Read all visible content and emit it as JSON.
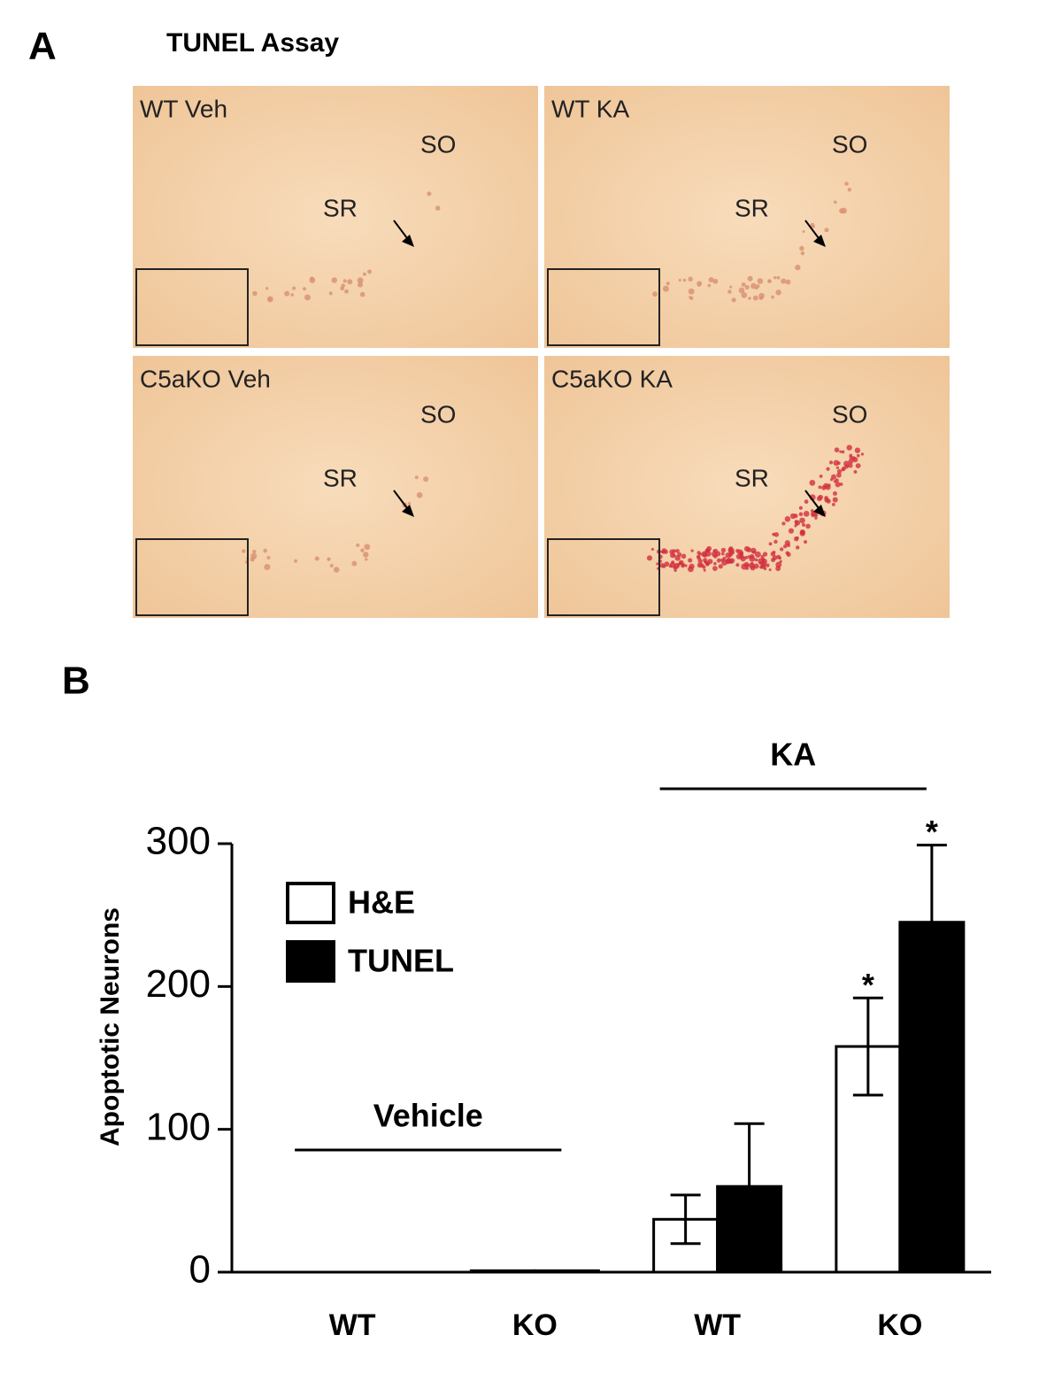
{
  "panel_a": {
    "label": "A",
    "title": "TUNEL Assay",
    "images": [
      {
        "label": "WT Veh",
        "regions": [
          "SO",
          "SR"
        ]
      },
      {
        "label": "WT KA",
        "regions": [
          "SO",
          "SR"
        ]
      },
      {
        "label": "C5aKO Veh",
        "regions": [
          "SO",
          "SR"
        ]
      },
      {
        "label": "C5aKO KA",
        "regions": [
          "SO",
          "SR"
        ]
      }
    ]
  },
  "chart_data": {
    "type": "bar",
    "panel_label": "B",
    "y_label": "Apoptotic Neurons",
    "categories": [
      "WT",
      "KO",
      "WT",
      "KO"
    ],
    "groups": [
      {
        "label": "Vehicle"
      },
      {
        "label": "KA"
      }
    ],
    "series": [
      {
        "name": "H&E",
        "color": "#ffffff",
        "values": [
          0,
          1,
          37,
          158
        ],
        "errors": [
          0,
          0,
          17,
          34
        ],
        "marks": [
          null,
          null,
          null,
          "*"
        ]
      },
      {
        "name": "TUNEL",
        "color": "#000000",
        "values": [
          0,
          1,
          60,
          245
        ],
        "errors": [
          0,
          0,
          44,
          54
        ],
        "marks": [
          null,
          null,
          null,
          "*"
        ]
      }
    ],
    "ylim": [
      0,
      300
    ],
    "yticks": [
      0,
      100,
      200,
      300
    ]
  }
}
